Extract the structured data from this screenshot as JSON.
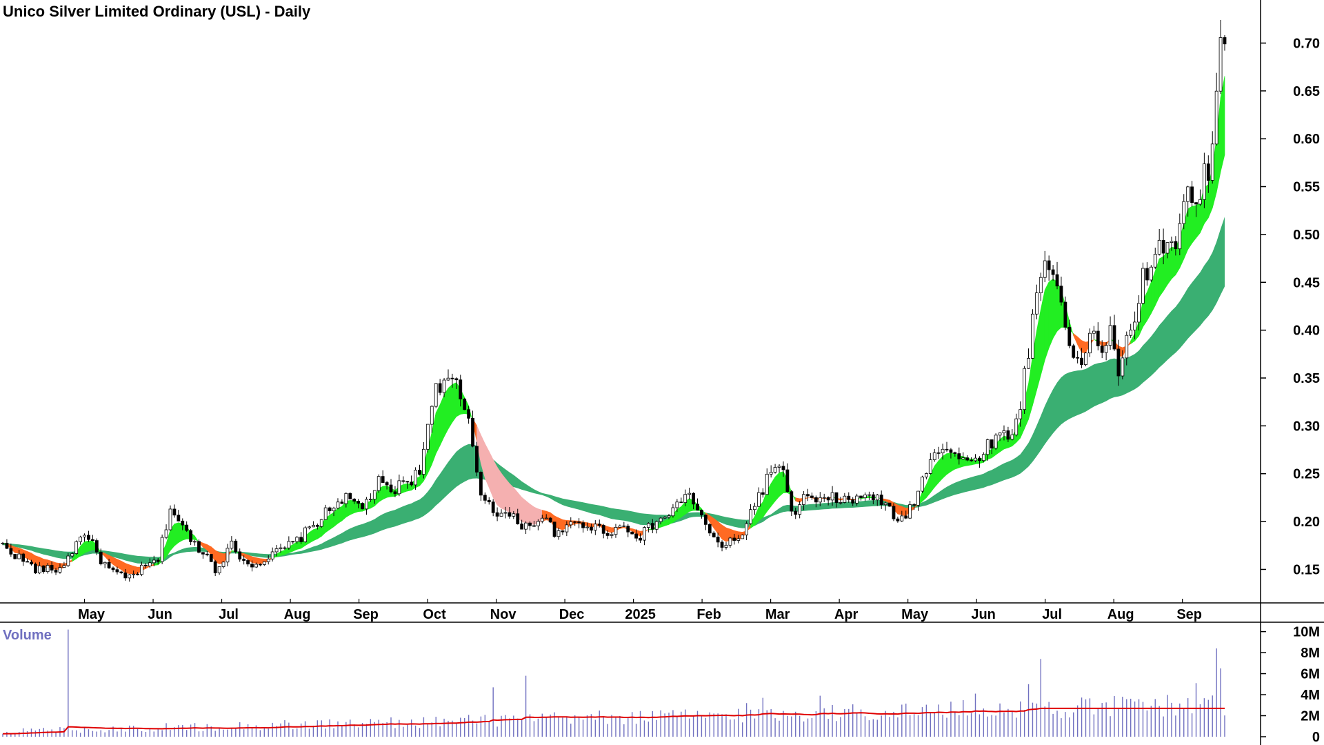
{
  "chart_data": {
    "type": "candlestick",
    "title": "Unico Silver Limited Ordinary (USL) - Daily",
    "price_axis": {
      "ticks": [
        "0.70",
        "0.65",
        "0.60",
        "0.55",
        "0.50",
        "0.45",
        "0.40",
        "0.35",
        "0.30",
        "0.25",
        "0.20",
        "0.15"
      ],
      "range": [
        0.115,
        0.745
      ]
    },
    "time_axis": {
      "labels": [
        "May",
        "Jun",
        "Jul",
        "Aug",
        "Sep",
        "Oct",
        "Nov",
        "Dec",
        "2025",
        "Feb",
        "Mar",
        "Apr",
        "May",
        "Jun",
        "Jul",
        "Aug",
        "Sep"
      ]
    },
    "volume_panel": {
      "label": "Volume",
      "ticks": [
        "10M",
        "8M",
        "6M",
        "4M",
        "2M",
        "0"
      ],
      "range": [
        0,
        10500000
      ],
      "avg_color": "#e00000",
      "bar_color": "#7070c0"
    },
    "colors": {
      "fast_up": "#22ee22",
      "fast_down": "#ff6a22",
      "fast_fade": "#f5b0b0",
      "slow_band": "#3aaf72",
      "candle": "#000000"
    },
    "close_path": [
      [
        0,
        0.175
      ],
      [
        8,
        0.15
      ],
      [
        14,
        0.15
      ],
      [
        20,
        0.19
      ],
      [
        24,
        0.16
      ],
      [
        26,
        0.15
      ],
      [
        30,
        0.14
      ],
      [
        34,
        0.15
      ],
      [
        38,
        0.16
      ],
      [
        41,
        0.215
      ],
      [
        46,
        0.18
      ],
      [
        50,
        0.165
      ],
      [
        52,
        0.15
      ],
      [
        56,
        0.175
      ],
      [
        60,
        0.155
      ],
      [
        64,
        0.16
      ],
      [
        68,
        0.17
      ],
      [
        72,
        0.18
      ],
      [
        77,
        0.2
      ],
      [
        83,
        0.225
      ],
      [
        88,
        0.215
      ],
      [
        92,
        0.24
      ],
      [
        95,
        0.23
      ],
      [
        98,
        0.24
      ],
      [
        102,
        0.25
      ],
      [
        105,
        0.33
      ],
      [
        108,
        0.35
      ],
      [
        111,
        0.34
      ],
      [
        114,
        0.3
      ],
      [
        117,
        0.23
      ],
      [
        121,
        0.21
      ],
      [
        124,
        0.205
      ],
      [
        128,
        0.195
      ],
      [
        132,
        0.205
      ],
      [
        136,
        0.185
      ],
      [
        140,
        0.2
      ],
      [
        144,
        0.195
      ],
      [
        148,
        0.19
      ],
      [
        152,
        0.195
      ],
      [
        156,
        0.185
      ],
      [
        160,
        0.2
      ],
      [
        164,
        0.21
      ],
      [
        167,
        0.23
      ],
      [
        170,
        0.215
      ],
      [
        173,
        0.185
      ],
      [
        176,
        0.175
      ],
      [
        180,
        0.18
      ],
      [
        183,
        0.21
      ],
      [
        186,
        0.235
      ],
      [
        189,
        0.26
      ],
      [
        191,
        0.25
      ],
      [
        193,
        0.205
      ],
      [
        196,
        0.225
      ],
      [
        200,
        0.22
      ],
      [
        204,
        0.225
      ],
      [
        208,
        0.22
      ],
      [
        212,
        0.23
      ],
      [
        216,
        0.215
      ],
      [
        220,
        0.2
      ],
      [
        224,
        0.23
      ],
      [
        227,
        0.27
      ],
      [
        230,
        0.28
      ],
      [
        233,
        0.27
      ],
      [
        236,
        0.26
      ],
      [
        239,
        0.27
      ],
      [
        242,
        0.285
      ],
      [
        245,
        0.29
      ],
      [
        248,
        0.3
      ],
      [
        251,
        0.38
      ],
      [
        253,
        0.44
      ],
      [
        255,
        0.47
      ],
      [
        257,
        0.46
      ],
      [
        259,
        0.44
      ],
      [
        261,
        0.38
      ],
      [
        263,
        0.36
      ],
      [
        265,
        0.38
      ],
      [
        267,
        0.4
      ],
      [
        269,
        0.38
      ],
      [
        271,
        0.395
      ],
      [
        273,
        0.36
      ],
      [
        275,
        0.385
      ],
      [
        277,
        0.4
      ],
      [
        279,
        0.46
      ],
      [
        281,
        0.47
      ],
      [
        283,
        0.48
      ],
      [
        285,
        0.5
      ],
      [
        287,
        0.485
      ],
      [
        289,
        0.53
      ],
      [
        291,
        0.54
      ],
      [
        293,
        0.55
      ],
      [
        294,
        0.58
      ],
      [
        295,
        0.56
      ],
      [
        296,
        0.6
      ],
      [
        297,
        0.66
      ],
      [
        298,
        0.71
      ]
    ],
    "volume_events": [
      [
        16,
        10200000
      ],
      [
        50,
        1200000
      ],
      [
        120,
        4700000
      ],
      [
        128,
        5800000
      ],
      [
        182,
        3200000
      ],
      [
        186,
        3700000
      ],
      [
        200,
        3900000
      ],
      [
        238,
        4100000
      ],
      [
        251,
        5000000
      ],
      [
        254,
        7400000
      ],
      [
        274,
        3800000
      ],
      [
        292,
        5100000
      ],
      [
        297,
        8400000
      ],
      [
        298,
        6500000
      ]
    ]
  }
}
